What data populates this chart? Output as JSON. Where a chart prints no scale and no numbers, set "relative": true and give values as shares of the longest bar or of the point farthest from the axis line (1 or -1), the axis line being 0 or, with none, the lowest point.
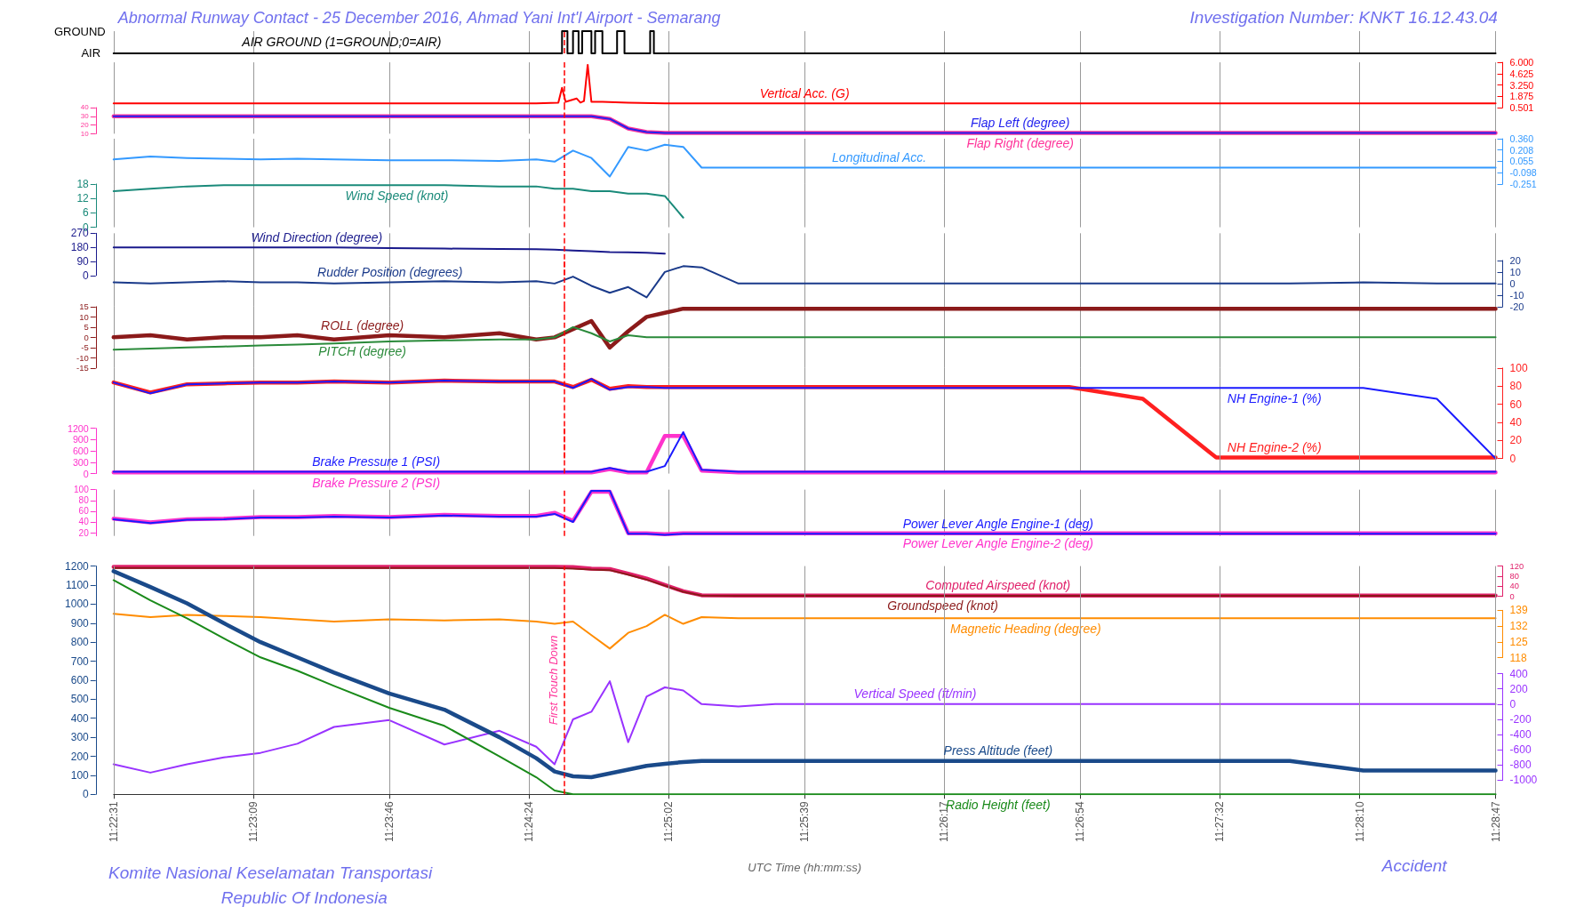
{
  "chart_data": [
    {
      "type": "step",
      "title": "Abnormal Runway Contact - 25 December 2016, Ahmad Yani Int'l Airport - Semarang",
      "annotations": [
        "Investigation Number: KNKT 16.12.43.04",
        "GROUND",
        "AIR"
      ],
      "relative": true,
      "xlim": [
        11.37528,
        11.47972
      ],
      "xticks": [
        {
          "value": 11.37528,
          "label": null
        },
        {
          "value": 11.38583,
          "label": null
        },
        {
          "value": 11.39611,
          "label": null
        },
        {
          "value": 11.40667,
          "label": null
        },
        {
          "value": 11.41722,
          "label": null
        },
        {
          "value": 11.4275,
          "label": null
        },
        {
          "value": 11.43806,
          "label": null
        },
        {
          "value": 11.44833,
          "label": null
        },
        {
          "value": 11.45889,
          "label": null
        },
        {
          "value": 11.46944,
          "label": null
        },
        {
          "value": 11.47972,
          "label": null
        }
      ],
      "grid": "x",
      "tick_labels": false,
      "ref_lines": [
        {
          "axis": "x",
          "value": 11.40931,
          "color": "#ff0000",
          "line_style": "dashed"
        }
      ],
      "series": [
        {
          "name": "AIR GROUND (1=GROUND;0=AIR)",
          "color": "#000000",
          "x": [
            11.37528,
            11.40917,
            11.40958,
            11.41,
            11.41042,
            11.41069,
            11.41139,
            11.41167,
            11.41222,
            11.41333,
            11.41389,
            11.41583,
            11.41611,
            11.47972
          ],
          "values": [
            0,
            1,
            0,
            1,
            0,
            1,
            0,
            1,
            0,
            1,
            0,
            1,
            0,
            0
          ]
        }
      ]
    },
    {
      "type": "line",
      "xlim": [
        11.37528,
        11.47972
      ],
      "xticks": [
        {
          "value": 11.37528,
          "label": null
        },
        {
          "value": 11.38583,
          "label": null
        },
        {
          "value": 11.39611,
          "label": null
        },
        {
          "value": 11.40667,
          "label": null
        },
        {
          "value": 11.41722,
          "label": null
        },
        {
          "value": 11.4275,
          "label": null
        },
        {
          "value": 11.43806,
          "label": null
        },
        {
          "value": 11.44833,
          "label": null
        },
        {
          "value": 11.45889,
          "label": null
        },
        {
          "value": 11.46944,
          "label": null
        },
        {
          "value": 11.47972,
          "label": null
        }
      ],
      "grid": "x",
      "tick_labels": "y",
      "y2lim": [
        0.501,
        6
      ],
      "y2ticks": [
        0.501,
        1.875,
        {
          "value": 3.25,
          "label": "3.250"
        },
        4.625,
        {
          "value": 6,
          "label": "6.000"
        }
      ],
      "ref_lines": [
        {
          "axis": "x",
          "value": 11.40931,
          "color": "#ff0000",
          "line_style": "dashed"
        }
      ],
      "series": [
        {
          "name": "Vertical Acc. (G)",
          "color": "#ff0000",
          "axis": "y2",
          "x": [
            11.37528,
            11.40722,
            11.40889,
            11.40917,
            11.40944,
            11.41028,
            11.41056,
            11.41083,
            11.41111,
            11.41139,
            11.41222,
            11.41417,
            11.41694,
            11.47972
          ],
          "values": [
            1.0,
            1.0,
            1.1,
            2.9,
            1.2,
            1.6,
            1.1,
            1.3,
            5.7,
            1.2,
            1.2,
            1.1,
            1.0,
            1.0
          ]
        }
      ]
    },
    {
      "type": "line",
      "x": [
        11.37528,
        11.37806,
        11.38083,
        11.38361,
        11.38639,
        11.38917,
        11.39194,
        11.39611,
        11.40028,
        11.40444,
        11.40722,
        11.40861,
        11.41,
        11.41139,
        11.41278,
        11.41417,
        11.41556,
        11.41694,
        11.41833,
        11.41972,
        11.4225,
        11.42528,
        11.43083,
        11.43639,
        11.44194,
        11.4475,
        11.45306,
        11.45861,
        11.46417,
        11.46972,
        11.47528,
        11.47972
      ],
      "xlim": [
        11.37528,
        11.47972
      ],
      "xticks": [
        {
          "value": 11.37528,
          "label": null
        },
        {
          "value": 11.38583,
          "label": null
        },
        {
          "value": 11.39611,
          "label": null
        },
        {
          "value": 11.40667,
          "label": null
        },
        {
          "value": 11.41722,
          "label": null
        },
        {
          "value": 11.4275,
          "label": null
        },
        {
          "value": 11.43806,
          "label": null
        },
        {
          "value": 11.44833,
          "label": null
        },
        {
          "value": 11.45889,
          "label": null
        },
        {
          "value": 11.46944,
          "label": null
        },
        {
          "value": 11.47972,
          "label": null
        }
      ],
      "grid": "x",
      "tick_labels": "y",
      "ylim": [
        10,
        40
      ],
      "yticks": [
        10,
        20,
        30,
        40
      ],
      "ref_lines": [
        {
          "axis": "x",
          "value": 11.40931,
          "color": "#ff0000",
          "line_style": "dashed"
        }
      ],
      "series": [
        {
          "name": "Flap Right (degree)",
          "color": "#ff3399",
          "values": [
            30,
            30,
            30,
            30,
            30,
            30,
            30,
            30,
            30,
            30,
            30,
            30,
            30,
            30,
            27,
            16,
            12,
            11,
            11,
            11,
            11,
            11,
            11,
            11,
            11,
            11,
            11,
            11,
            11,
            11,
            11,
            11
          ]
        },
        {
          "name": "Flap Left (degree)",
          "color": "#2222ee",
          "values": [
            30,
            30,
            30,
            30,
            30,
            30,
            30,
            30,
            30,
            30,
            30,
            30,
            30,
            30,
            27,
            16,
            12,
            11,
            11,
            11,
            11,
            11,
            11,
            11,
            11,
            11,
            11,
            11,
            11,
            11,
            11,
            11
          ]
        }
      ]
    },
    {
      "type": "line",
      "x": [
        11.37528,
        11.37806,
        11.38083,
        11.38361,
        11.38639,
        11.38917,
        11.39194,
        11.39611,
        11.40028,
        11.40444,
        11.40722,
        11.40861,
        11.41,
        11.41139,
        11.41278,
        11.41417,
        11.41556,
        11.41694,
        11.41833,
        11.41972,
        11.4225,
        11.42528,
        11.43083,
        11.43639,
        11.44194,
        11.4475,
        11.45306,
        11.45861,
        11.46417,
        11.46972,
        11.47528,
        11.47972
      ],
      "xlim": [
        11.37528,
        11.47972
      ],
      "xticks": [
        {
          "value": 11.37528,
          "label": null
        },
        {
          "value": 11.38583,
          "label": null
        },
        {
          "value": 11.39611,
          "label": null
        },
        {
          "value": 11.40667,
          "label": null
        },
        {
          "value": 11.41722,
          "label": null
        },
        {
          "value": 11.4275,
          "label": null
        },
        {
          "value": 11.43806,
          "label": null
        },
        {
          "value": 11.44833,
          "label": null
        },
        {
          "value": 11.45889,
          "label": null
        },
        {
          "value": 11.46944,
          "label": null
        },
        {
          "value": 11.47972,
          "label": null
        }
      ],
      "grid": "x",
      "tick_labels": "y",
      "y2lim": [
        -0.251,
        0.36
      ],
      "y2ticks": [
        -0.251,
        -0.098,
        0.055,
        0.208,
        {
          "value": 0.36,
          "label": "0.360"
        }
      ],
      "ref_lines": [
        {
          "axis": "x",
          "value": 11.40931,
          "color": "#ff0000",
          "line_style": "dashed"
        }
      ],
      "series": [
        {
          "name": "Longitudinal Acc.",
          "color": "#3399ff",
          "axis": "y2",
          "values": [
            0.08,
            0.12,
            0.1,
            0.09,
            0.08,
            0.09,
            0.08,
            0.07,
            0.07,
            0.06,
            0.08,
            0.05,
            0.2,
            0.1,
            -0.15,
            0.25,
            0.2,
            0.28,
            0.25,
            -0.03,
            -0.03,
            -0.03,
            -0.03,
            -0.03,
            -0.03,
            -0.03,
            -0.03,
            -0.03,
            -0.03,
            -0.03,
            -0.03,
            -0.03
          ]
        }
      ]
    },
    {
      "type": "line",
      "x": [
        11.37528,
        11.37806,
        11.38083,
        11.38361,
        11.38639,
        11.38917,
        11.39194,
        11.39611,
        11.40028,
        11.40444,
        11.40722,
        11.40861,
        11.41,
        11.41139,
        11.41278,
        11.41417,
        11.41556,
        11.41694,
        11.41833
      ],
      "xlim": [
        11.37528,
        11.47972
      ],
      "xticks": [
        {
          "value": 11.37528,
          "label": null
        },
        {
          "value": 11.38583,
          "label": null
        },
        {
          "value": 11.39611,
          "label": null
        },
        {
          "value": 11.40667,
          "label": null
        },
        {
          "value": 11.41722,
          "label": null
        },
        {
          "value": 11.4275,
          "label": null
        },
        {
          "value": 11.43806,
          "label": null
        },
        {
          "value": 11.44833,
          "label": null
        },
        {
          "value": 11.45889,
          "label": null
        },
        {
          "value": 11.46944,
          "label": null
        },
        {
          "value": 11.47972,
          "label": null
        }
      ],
      "grid": "x",
      "tick_labels": "y",
      "ylim": [
        0,
        18
      ],
      "yticks": [
        0,
        6,
        12,
        18
      ],
      "ref_lines": [
        {
          "axis": "x",
          "value": 11.40931,
          "color": "#ff0000",
          "line_style": "dashed"
        }
      ],
      "series": [
        {
          "name": "Wind Speed (knot)",
          "color": "#1a8a7a",
          "values": [
            15,
            16,
            17,
            17.5,
            17.5,
            17.5,
            17.5,
            17.5,
            17.5,
            17,
            17,
            16,
            16,
            15,
            15,
            14,
            14,
            13,
            4
          ]
        }
      ]
    },
    {
      "type": "line",
      "x": [
        11.37528,
        11.37806,
        11.38083,
        11.38361,
        11.38639,
        11.38917,
        11.39194,
        11.39611,
        11.40028,
        11.40444,
        11.40722,
        11.40861,
        11.41,
        11.41139,
        11.41278,
        11.41417,
        11.41556,
        11.41694
      ],
      "xlim": [
        11.37528,
        11.47972
      ],
      "xticks": [
        {
          "value": 11.37528,
          "label": null
        },
        {
          "value": 11.38583,
          "label": null
        },
        {
          "value": 11.39611,
          "label": null
        },
        {
          "value": 11.40667,
          "label": null
        },
        {
          "value": 11.41722,
          "label": null
        },
        {
          "value": 11.4275,
          "label": null
        },
        {
          "value": 11.43806,
          "label": null
        },
        {
          "value": 11.44833,
          "label": null
        },
        {
          "value": 11.45889,
          "label": null
        },
        {
          "value": 11.46944,
          "label": null
        },
        {
          "value": 11.47972,
          "label": null
        }
      ],
      "grid": "x",
      "tick_labels": "y",
      "ylim": [
        0,
        270
      ],
      "yticks": [
        0,
        90,
        180,
        270
      ],
      "ref_lines": [
        {
          "axis": "x",
          "value": 11.40931,
          "color": "#ff0000",
          "line_style": "dashed"
        }
      ],
      "series": [
        {
          "name": "Wind Direction (degree)",
          "color": "#1a1a8c",
          "values": [
            180,
            180,
            180,
            180,
            180,
            180,
            180,
            175,
            172,
            170,
            168,
            165,
            160,
            155,
            150,
            148,
            145,
            140
          ]
        }
      ]
    },
    {
      "type": "line",
      "x": [
        11.37528,
        11.37806,
        11.38083,
        11.38361,
        11.38639,
        11.38917,
        11.39194,
        11.39611,
        11.40028,
        11.40444,
        11.40722,
        11.40861,
        11.41,
        11.41139,
        11.41278,
        11.41417,
        11.41556,
        11.41694,
        11.41833,
        11.41972,
        11.4225,
        11.42528,
        11.43083,
        11.43639,
        11.44194,
        11.4475,
        11.45306,
        11.45861,
        11.46417,
        11.46972,
        11.47528,
        11.47972
      ],
      "xlim": [
        11.37528,
        11.47972
      ],
      "xticks": [
        {
          "value": 11.37528,
          "label": null
        },
        {
          "value": 11.38583,
          "label": null
        },
        {
          "value": 11.39611,
          "label": null
        },
        {
          "value": 11.40667,
          "label": null
        },
        {
          "value": 11.41722,
          "label": null
        },
        {
          "value": 11.4275,
          "label": null
        },
        {
          "value": 11.43806,
          "label": null
        },
        {
          "value": 11.44833,
          "label": null
        },
        {
          "value": 11.45889,
          "label": null
        },
        {
          "value": 11.46944,
          "label": null
        },
        {
          "value": 11.47972,
          "label": null
        }
      ],
      "grid": "x",
      "tick_labels": "y",
      "y2lim": [
        -20,
        20
      ],
      "y2ticks": [
        -20,
        -10,
        0,
        10,
        20
      ],
      "ref_lines": [
        {
          "axis": "x",
          "value": 11.40931,
          "color": "#ff0000",
          "line_style": "dashed"
        }
      ],
      "series": [
        {
          "name": "Rudder Position (degrees)",
          "color": "#1a3a8a",
          "axis": "y2",
          "values": [
            1,
            0,
            1,
            2,
            1,
            1,
            0,
            1,
            2,
            1,
            2,
            0,
            6,
            -2,
            -8,
            -3,
            -12,
            10,
            15,
            14,
            0,
            0,
            0,
            0,
            0,
            0,
            0,
            0,
            0,
            1,
            0,
            0
          ]
        }
      ]
    },
    {
      "type": "line",
      "x": [
        11.37528,
        11.37806,
        11.38083,
        11.38361,
        11.38639,
        11.38917,
        11.39194,
        11.39611,
        11.40028,
        11.40444,
        11.40722,
        11.40861,
        11.41,
        11.41139,
        11.41278,
        11.41417,
        11.41556,
        11.41694,
        11.41833,
        11.41972,
        11.4225,
        11.42528,
        11.43083,
        11.43639,
        11.44194,
        11.4475,
        11.45306,
        11.45861,
        11.46417,
        11.46972,
        11.47528,
        11.47972
      ],
      "xlim": [
        11.37528,
        11.47972
      ],
      "xticks": [
        {
          "value": 11.37528,
          "label": null
        },
        {
          "value": 11.38583,
          "label": null
        },
        {
          "value": 11.39611,
          "label": null
        },
        {
          "value": 11.40667,
          "label": null
        },
        {
          "value": 11.41722,
          "label": null
        },
        {
          "value": 11.4275,
          "label": null
        },
        {
          "value": 11.43806,
          "label": null
        },
        {
          "value": 11.44833,
          "label": null
        },
        {
          "value": 11.45889,
          "label": null
        },
        {
          "value": 11.46944,
          "label": null
        },
        {
          "value": 11.47972,
          "label": null
        }
      ],
      "grid": "x",
      "tick_labels": "y",
      "ylim": [
        -15,
        15
      ],
      "yticks": [
        -15,
        -10,
        -5,
        0,
        5,
        10,
        15
      ],
      "ref_lines": [
        {
          "axis": "x",
          "value": 11.40931,
          "color": "#ff0000",
          "line_style": "dashed"
        }
      ],
      "series": [
        {
          "name": "ROLL (degree)",
          "color": "#8b1a1a",
          "values": [
            0,
            1,
            -1,
            0,
            0,
            1,
            -1,
            1,
            0,
            2,
            -1,
            0,
            4,
            8,
            -5,
            3,
            10,
            12,
            14,
            14,
            14,
            14,
            14,
            14,
            14,
            14,
            14,
            14,
            14,
            14,
            14,
            14
          ]
        },
        {
          "name": "PITCH (degree)",
          "color": "#2a8a3a",
          "values": [
            -6,
            -5.5,
            -5,
            -4.5,
            -4,
            -3.5,
            -3,
            -2,
            -1.5,
            -1,
            -1,
            0,
            5,
            2,
            -2,
            1,
            0,
            0,
            0,
            0,
            0,
            0,
            0,
            0,
            0,
            0,
            0,
            0,
            0,
            0,
            0,
            0
          ]
        }
      ]
    },
    {
      "type": "line",
      "x": [
        11.37528,
        11.37806,
        11.38083,
        11.38361,
        11.38639,
        11.38917,
        11.39194,
        11.39611,
        11.40028,
        11.40444,
        11.40722,
        11.40861,
        11.41,
        11.41139,
        11.41278,
        11.41417,
        11.41556,
        11.41694,
        11.41833,
        11.41972,
        11.4225,
        11.42528,
        11.43083,
        11.43639,
        11.44194,
        11.4475,
        11.45306,
        11.45861,
        11.46417,
        11.46972,
        11.47528,
        11.47972
      ],
      "xlim": [
        11.37528,
        11.47972
      ],
      "xticks": [
        {
          "value": 11.37528,
          "label": null
        },
        {
          "value": 11.38583,
          "label": null
        },
        {
          "value": 11.39611,
          "label": null
        },
        {
          "value": 11.40667,
          "label": null
        },
        {
          "value": 11.41722,
          "label": null
        },
        {
          "value": 11.4275,
          "label": null
        },
        {
          "value": 11.43806,
          "label": null
        },
        {
          "value": 11.44833,
          "label": null
        },
        {
          "value": 11.45889,
          "label": null
        },
        {
          "value": 11.46944,
          "label": null
        },
        {
          "value": 11.47972,
          "label": null
        }
      ],
      "grid": "x",
      "tick_labels": "y",
      "y2lim": [
        0,
        100
      ],
      "y2ticks": [
        0,
        20,
        40,
        60,
        80,
        100
      ],
      "ref_lines": [
        {
          "axis": "x",
          "value": 11.40931,
          "color": "#ff0000",
          "line_style": "dashed"
        }
      ],
      "series": [
        {
          "name": "NH Engine-2 (%)",
          "color": "#ff2020",
          "axis": "y2",
          "values": [
            84,
            73,
            82,
            83,
            84,
            84,
            85,
            84,
            86,
            85,
            85,
            85,
            79,
            87,
            77,
            80,
            79,
            79,
            79,
            79,
            79,
            79,
            79,
            79,
            79,
            79,
            66,
            1,
            1,
            1,
            1,
            1
          ]
        },
        {
          "name": "NH Engine-1 (%)",
          "color": "#1a1aff",
          "axis": "y2",
          "values": [
            84,
            72,
            82,
            83,
            84,
            84,
            85,
            84,
            86,
            85,
            85,
            85,
            78,
            88,
            76,
            79,
            79,
            78,
            78,
            78,
            78,
            78,
            78,
            78,
            78,
            78,
            78,
            78,
            78,
            78,
            66,
            0
          ]
        }
      ]
    },
    {
      "type": "line",
      "x": [
        11.37528,
        11.37806,
        11.38083,
        11.38361,
        11.38639,
        11.38917,
        11.39194,
        11.39611,
        11.40028,
        11.40444,
        11.40722,
        11.40861,
        11.41,
        11.41139,
        11.41278,
        11.41417,
        11.41556,
        11.41694,
        11.41833,
        11.41972,
        11.4225,
        11.42528,
        11.43083,
        11.43639,
        11.44194,
        11.4475,
        11.45306,
        11.45861,
        11.46417,
        11.46972,
        11.47528,
        11.47972
      ],
      "xlim": [
        11.37528,
        11.47972
      ],
      "xticks": [
        {
          "value": 11.37528,
          "label": null
        },
        {
          "value": 11.38583,
          "label": null
        },
        {
          "value": 11.39611,
          "label": null
        },
        {
          "value": 11.40667,
          "label": null
        },
        {
          "value": 11.41722,
          "label": null
        },
        {
          "value": 11.4275,
          "label": null
        },
        {
          "value": 11.43806,
          "label": null
        },
        {
          "value": 11.44833,
          "label": null
        },
        {
          "value": 11.45889,
          "label": null
        },
        {
          "value": 11.46944,
          "label": null
        },
        {
          "value": 11.47972,
          "label": null
        }
      ],
      "grid": "x",
      "tick_labels": "y",
      "ylim": [
        0,
        1200
      ],
      "yticks": [
        0,
        300,
        600,
        900,
        1200
      ],
      "ref_lines": [
        {
          "axis": "x",
          "value": 11.40931,
          "color": "#ff0000",
          "line_style": "dashed"
        }
      ],
      "series": [
        {
          "name": "Brake Pressure 2 (PSI)",
          "color": "#ff33cc",
          "values": [
            30,
            30,
            30,
            30,
            30,
            30,
            30,
            30,
            30,
            30,
            30,
            30,
            30,
            30,
            120,
            30,
            30,
            1000,
            1000,
            80,
            30,
            30,
            30,
            30,
            30,
            30,
            30,
            30,
            30,
            30,
            30,
            30
          ]
        },
        {
          "name": "Brake Pressure 1 (PSI)",
          "color": "#1a1aff",
          "values": [
            50,
            50,
            50,
            50,
            50,
            50,
            50,
            50,
            50,
            50,
            50,
            50,
            50,
            50,
            150,
            50,
            50,
            200,
            1100,
            100,
            50,
            50,
            50,
            50,
            50,
            50,
            50,
            50,
            50,
            50,
            50,
            50
          ]
        }
      ]
    },
    {
      "type": "line",
      "x": [
        11.37528,
        11.37806,
        11.38083,
        11.38361,
        11.38639,
        11.38917,
        11.39194,
        11.39611,
        11.40028,
        11.40444,
        11.40722,
        11.40861,
        11.41,
        11.41139,
        11.41278,
        11.41417,
        11.41556,
        11.41694,
        11.41833,
        11.41972,
        11.4225,
        11.42528,
        11.43083,
        11.43639,
        11.44194,
        11.4475,
        11.45306,
        11.45861,
        11.46417,
        11.46972,
        11.47528,
        11.47972
      ],
      "xlim": [
        11.37528,
        11.47972
      ],
      "xticks": [
        {
          "value": 11.37528,
          "label": null
        },
        {
          "value": 11.38583,
          "label": null
        },
        {
          "value": 11.39611,
          "label": null
        },
        {
          "value": 11.40667,
          "label": null
        },
        {
          "value": 11.41722,
          "label": null
        },
        {
          "value": 11.4275,
          "label": null
        },
        {
          "value": 11.43806,
          "label": null
        },
        {
          "value": 11.44833,
          "label": null
        },
        {
          "value": 11.45889,
          "label": null
        },
        {
          "value": 11.46944,
          "label": null
        },
        {
          "value": 11.47972,
          "label": null
        }
      ],
      "grid": "x",
      "tick_labels": "y",
      "ylim": [
        14,
        100
      ],
      "yticks": [
        20,
        40,
        60,
        80,
        100
      ],
      "ref_lines": [
        {
          "axis": "x",
          "value": 11.40931,
          "color": "#ff0000",
          "line_style": "dashed"
        }
      ],
      "series": [
        {
          "name": "Power Lever Angle Engine-2 (deg)",
          "color": "#ff33cc",
          "values": [
            46,
            39,
            45,
            46,
            49,
            49,
            51,
            49,
            53,
            51,
            51,
            57,
            42,
            96,
            96,
            19,
            19,
            17,
            19,
            19,
            19,
            19,
            19,
            19,
            19,
            19,
            19,
            19,
            19,
            19,
            19,
            19
          ]
        },
        {
          "name": "Power Lever Angle Engine-1 (deg)",
          "color": "#1a1aff",
          "values": [
            45,
            38,
            44,
            45,
            48,
            48,
            50,
            48,
            52,
            50,
            50,
            55,
            40,
            98,
            98,
            18,
            18,
            16,
            18,
            18,
            18,
            18,
            18,
            18,
            18,
            18,
            18,
            18,
            18,
            18,
            18,
            18
          ]
        }
      ]
    },
    {
      "type": "line",
      "x": [
        11.37528,
        11.37806,
        11.38083,
        11.38361,
        11.38639,
        11.38917,
        11.39194,
        11.39611,
        11.40028,
        11.40444,
        11.40722,
        11.40861,
        11.41,
        11.41139,
        11.41278,
        11.41417,
        11.41556,
        11.41694,
        11.41833,
        11.41972,
        11.4225,
        11.42528,
        11.43083,
        11.43639,
        11.44194,
        11.4475,
        11.45306,
        11.45861,
        11.46417,
        11.46972,
        11.47528,
        11.47972
      ],
      "xlim": [
        11.37528,
        11.47972
      ],
      "tick_labels": "y",
      "y2lim": [
        0,
        120
      ],
      "y2ticks": [
        0,
        40,
        80,
        120
      ],
      "series": [
        {
          "name": "Computed Airspeed (knot)",
          "color": "#e0206a",
          "axis": "y2",
          "values": [
            117,
            117,
            117,
            117,
            117,
            117,
            117,
            117,
            117,
            117,
            117,
            117,
            116,
            110,
            108,
            90,
            70,
            45,
            20,
            4,
            3,
            3,
            3,
            3,
            3,
            3,
            3,
            3,
            3,
            3,
            3,
            3
          ]
        },
        {
          "name": "Groundspeed (knot)",
          "color": "#8b1a1a",
          "axis": "y2",
          "values": [
            112,
            112,
            112,
            112,
            112,
            112,
            112,
            112,
            112,
            112,
            112,
            112,
            110,
            106,
            104,
            86,
            66,
            42,
            18,
            3,
            2,
            2,
            2,
            2,
            2,
            2,
            2,
            2,
            2,
            2,
            2,
            2
          ]
        }
      ]
    },
    {
      "type": "line",
      "x": [
        11.37528,
        11.37806,
        11.38083,
        11.38361,
        11.38639,
        11.38917,
        11.39194,
        11.39611,
        11.40028,
        11.40444,
        11.40722,
        11.40861,
        11.41,
        11.41139,
        11.41278,
        11.41417,
        11.41556,
        11.41694,
        11.41833,
        11.41972,
        11.4225,
        11.42528,
        11.43083,
        11.43639,
        11.44194,
        11.4475,
        11.45306,
        11.45861,
        11.46417,
        11.46972,
        11.47528,
        11.47972
      ],
      "xlim": [
        11.37528,
        11.47972
      ],
      "tick_labels": "y",
      "y2lim": [
        118,
        139
      ],
      "y2ticks": [
        118,
        125,
        132,
        139
      ],
      "series": [
        {
          "name": "Magnetic Heading (degree)",
          "color": "#ff8c00",
          "axis": "y2",
          "values": [
            137.5,
            136,
            137,
            136.5,
            136,
            135,
            134,
            135,
            134.5,
            135,
            134,
            133,
            134,
            128,
            122,
            129,
            132,
            137,
            133,
            136,
            135.5,
            135.5,
            135.5,
            135.5,
            135.5,
            135.5,
            135.5,
            135.5,
            135.5,
            135.5,
            135.5,
            135.5
          ]
        }
      ]
    },
    {
      "type": "line",
      "x": [
        11.37528,
        11.37806,
        11.38083,
        11.38361,
        11.38639,
        11.38917,
        11.39194,
        11.39611,
        11.40028,
        11.40444,
        11.40722,
        11.40861,
        11.41,
        11.41139,
        11.41278,
        11.41417,
        11.41556,
        11.41694,
        11.41833,
        11.41972,
        11.4225,
        11.42528,
        11.43083,
        11.43639,
        11.44194,
        11.4475,
        11.45306,
        11.45861,
        11.46417,
        11.46972,
        11.47528,
        11.47972
      ],
      "xlim": [
        11.37528,
        11.47972
      ],
      "tick_labels": "y",
      "y2lim": [
        -1000,
        400
      ],
      "y2ticks": [
        -1000,
        -800,
        -600,
        -400,
        -200,
        0,
        200,
        400
      ],
      "series": [
        {
          "name": "Vertical Speed (ft/min)",
          "color": "#9933ff",
          "axis": "y2",
          "values": [
            -790,
            -900,
            -790,
            -700,
            -640,
            -520,
            -300,
            -210,
            -530,
            -350,
            -560,
            -790,
            -200,
            -100,
            300,
            -500,
            100,
            220,
            180,
            0,
            -30,
            0,
            0,
            0,
            0,
            0,
            0,
            0,
            0,
            0,
            0,
            0
          ]
        }
      ]
    },
    {
      "type": "line",
      "xlabel": "UTC Time (hh:mm:ss)",
      "annotations": [
        "Komite Nasional Keselamatan Transportasi",
        "Republic Of Indonesia",
        "Accident"
      ],
      "x": [
        11.37528,
        11.37806,
        11.38083,
        11.38361,
        11.38639,
        11.38917,
        11.39194,
        11.39611,
        11.40028,
        11.40444,
        11.40722,
        11.40861,
        11.41,
        11.41139,
        11.41278,
        11.41417,
        11.41556,
        11.41694,
        11.41833,
        11.41972,
        11.4225,
        11.42528,
        11.43083,
        11.43639,
        11.44194,
        11.4475,
        11.45306,
        11.45861,
        11.46417,
        11.46972,
        11.47528,
        11.47972
      ],
      "xlim": [
        11.37528,
        11.47972
      ],
      "xticks": [
        {
          "value": 11.37528,
          "label": "11:22:31"
        },
        {
          "value": 11.38583,
          "label": "11:23:09"
        },
        {
          "value": 11.39611,
          "label": "11:23:46"
        },
        {
          "value": 11.40667,
          "label": "11:24:24"
        },
        {
          "value": 11.41722,
          "label": "11:25:02"
        },
        {
          "value": 11.4275,
          "label": "11:25:39"
        },
        {
          "value": 11.43806,
          "label": "11:26:17"
        },
        {
          "value": 11.44833,
          "label": "11:26:54"
        },
        {
          "value": 11.45889,
          "label": "11:27:32"
        },
        {
          "value": 11.46944,
          "label": "11:28:10"
        },
        {
          "value": 11.47972,
          "label": "11:28:47"
        }
      ],
      "grid": "x",
      "ylim": [
        0,
        1200
      ],
      "yticks": [
        0,
        100,
        200,
        300,
        400,
        500,
        600,
        700,
        800,
        900,
        1000,
        1100,
        1200
      ],
      "ref_lines": [
        {
          "axis": "x",
          "value": 11.40931,
          "label": "First Touch Down",
          "color": "#ff0000",
          "line_style": "dashed"
        }
      ],
      "series": [
        {
          "name": "Press Altitude (feet)",
          "color": "#1a4a8a",
          "values": [
            1173,
            1090,
            1004,
            900,
            800,
            720,
            640,
            530,
            445,
            300,
            190,
            120,
            95,
            90,
            110,
            130,
            150,
            160,
            170,
            175,
            175,
            175,
            175,
            175,
            175,
            175,
            175,
            175,
            175,
            125,
            125,
            125
          ]
        },
        {
          "name": "Radio Height (feet)",
          "color": "#1a8a1a",
          "values": [
            1126,
            1020,
            925,
            820,
            720,
            650,
            570,
            455,
            360,
            200,
            90,
            20,
            0,
            0,
            0,
            0,
            0,
            0,
            0,
            0,
            0,
            0,
            0,
            0,
            0,
            0,
            0,
            0,
            0,
            0,
            0,
            0
          ]
        }
      ]
    }
  ]
}
